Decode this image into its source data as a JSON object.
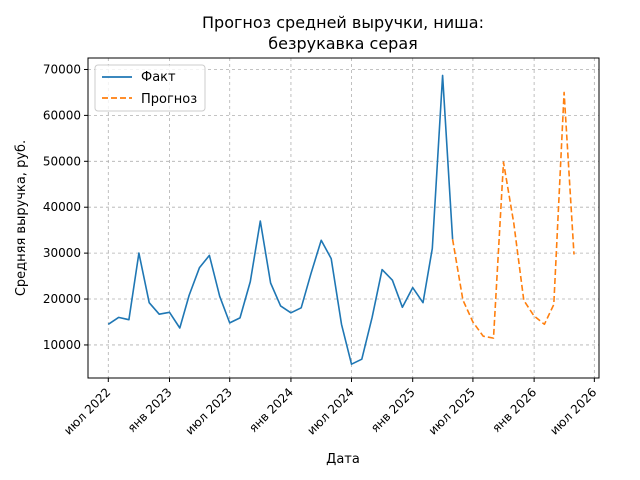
{
  "chart_data": {
    "type": "line",
    "title": [
      "Прогноз средней выручки, ниша:",
      "безрукавка серая"
    ],
    "xlabel": "Дата",
    "ylabel": "Средняя выручка, руб.",
    "grid": true,
    "legend_position": "top-left",
    "xlim": [
      "2022-05-01",
      "2026-07-15"
    ],
    "ylim": [
      2800,
      72500
    ],
    "x_ticks": [
      {
        "date": "2022-07-01",
        "label": "июл 2022"
      },
      {
        "date": "2023-01-01",
        "label": "янв 2023"
      },
      {
        "date": "2023-07-01",
        "label": "июл 2023"
      },
      {
        "date": "2024-01-01",
        "label": "янв 2024"
      },
      {
        "date": "2024-07-01",
        "label": "июл 2024"
      },
      {
        "date": "2025-01-01",
        "label": "янв 2025"
      },
      {
        "date": "2025-07-01",
        "label": "июл 2025"
      },
      {
        "date": "2026-01-01",
        "label": "янв 2026"
      },
      {
        "date": "2026-07-01",
        "label": "июл 2026"
      }
    ],
    "y_ticks": [
      10000,
      20000,
      30000,
      40000,
      50000,
      60000,
      70000
    ],
    "series": [
      {
        "name": "Факт",
        "color": "#1f77b4",
        "style": "solid",
        "points": [
          [
            "2022-07-01",
            14500
          ],
          [
            "2022-08-01",
            16000
          ],
          [
            "2022-09-01",
            15500
          ],
          [
            "2022-10-01",
            30000
          ],
          [
            "2022-11-01",
            19200
          ],
          [
            "2022-12-01",
            16700
          ],
          [
            "2023-01-01",
            17100
          ],
          [
            "2023-02-01",
            13700
          ],
          [
            "2023-03-01",
            20800
          ],
          [
            "2023-04-01",
            26800
          ],
          [
            "2023-05-01",
            29500
          ],
          [
            "2023-06-01",
            20600
          ],
          [
            "2023-07-01",
            14800
          ],
          [
            "2023-08-01",
            15900
          ],
          [
            "2023-09-01",
            23800
          ],
          [
            "2023-10-01",
            37000
          ],
          [
            "2023-11-01",
            23500
          ],
          [
            "2023-12-01",
            18500
          ],
          [
            "2024-01-01",
            17000
          ],
          [
            "2024-02-01",
            18100
          ],
          [
            "2024-03-01",
            25500
          ],
          [
            "2024-04-01",
            32800
          ],
          [
            "2024-05-01",
            28800
          ],
          [
            "2024-06-01",
            14500
          ],
          [
            "2024-07-01",
            5800
          ],
          [
            "2024-08-01",
            6900
          ],
          [
            "2024-09-01",
            16000
          ],
          [
            "2024-10-01",
            26400
          ],
          [
            "2024-11-01",
            24100
          ],
          [
            "2024-12-01",
            18200
          ],
          [
            "2025-01-01",
            22500
          ],
          [
            "2025-02-01",
            19200
          ],
          [
            "2025-03-01",
            31000
          ],
          [
            "2025-04-01",
            68700
          ],
          [
            "2025-05-01",
            33000
          ]
        ]
      },
      {
        "name": "Прогноз",
        "color": "#ff7f0e",
        "style": "dashed",
        "points": [
          [
            "2025-05-01",
            33000
          ],
          [
            "2025-06-01",
            19800
          ],
          [
            "2025-07-01",
            15000
          ],
          [
            "2025-08-01",
            11900
          ],
          [
            "2025-09-01",
            11500
          ],
          [
            "2025-10-01",
            49800
          ],
          [
            "2025-11-01",
            36500
          ],
          [
            "2025-12-01",
            19700
          ],
          [
            "2026-01-01",
            16300
          ],
          [
            "2026-02-01",
            14500
          ],
          [
            "2026-03-01",
            18800
          ],
          [
            "2026-04-01",
            65000
          ],
          [
            "2026-05-01",
            29700
          ]
        ]
      }
    ]
  }
}
